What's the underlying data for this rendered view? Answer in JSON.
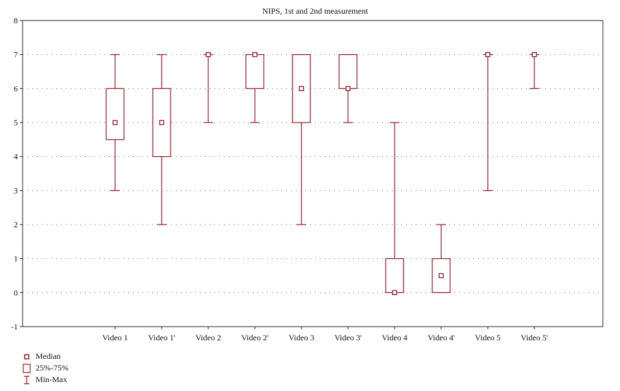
{
  "chart_data": {
    "type": "box",
    "title": "NIPS, 1st and 2nd measurement",
    "xlabel": "",
    "ylabel": "",
    "ylim": [
      -1,
      8
    ],
    "yticks": [
      "-1",
      "0",
      "1",
      "2",
      "3",
      "4",
      "5",
      "6",
      "7",
      "8"
    ],
    "grid": "horizontal dotted",
    "color": "#8b1a2a",
    "categories": [
      "Video 1",
      "Video 1'",
      "Video 2",
      "Video 2'",
      "Video 3",
      "Video 3'",
      "Video 4",
      "Video 4'",
      "Video 5",
      "Video 5'"
    ],
    "boxes": [
      {
        "min": 3,
        "q1": 4.5,
        "median": 5,
        "q3": 6,
        "max": 7
      },
      {
        "min": 2,
        "q1": 4,
        "median": 5,
        "q3": 6,
        "max": 7
      },
      {
        "min": 5,
        "q1": 7,
        "median": 7,
        "q3": 7,
        "max": 7
      },
      {
        "min": 5,
        "q1": 6,
        "median": 7,
        "q3": 7,
        "max": 7
      },
      {
        "min": 2,
        "q1": 5,
        "median": 6,
        "q3": 7,
        "max": 7
      },
      {
        "min": 5,
        "q1": 6,
        "median": 6,
        "q3": 7,
        "max": 7
      },
      {
        "min": 0,
        "q1": 0,
        "median": 0,
        "q3": 1,
        "max": 5
      },
      {
        "min": 0,
        "q1": 0,
        "median": 0.5,
        "q3": 1,
        "max": 2
      },
      {
        "min": 3,
        "q1": 7,
        "median": 7,
        "q3": 7,
        "max": 7
      },
      {
        "min": 6,
        "q1": 7,
        "median": 7,
        "q3": 7,
        "max": 7
      }
    ],
    "legend": {
      "placement": "bottom-left",
      "entries": [
        {
          "symbol": "median-icon",
          "label": "Median"
        },
        {
          "symbol": "box-icon",
          "label": "25%-75%"
        },
        {
          "symbol": "whisker-icon",
          "label": "Min-Max"
        }
      ]
    }
  }
}
